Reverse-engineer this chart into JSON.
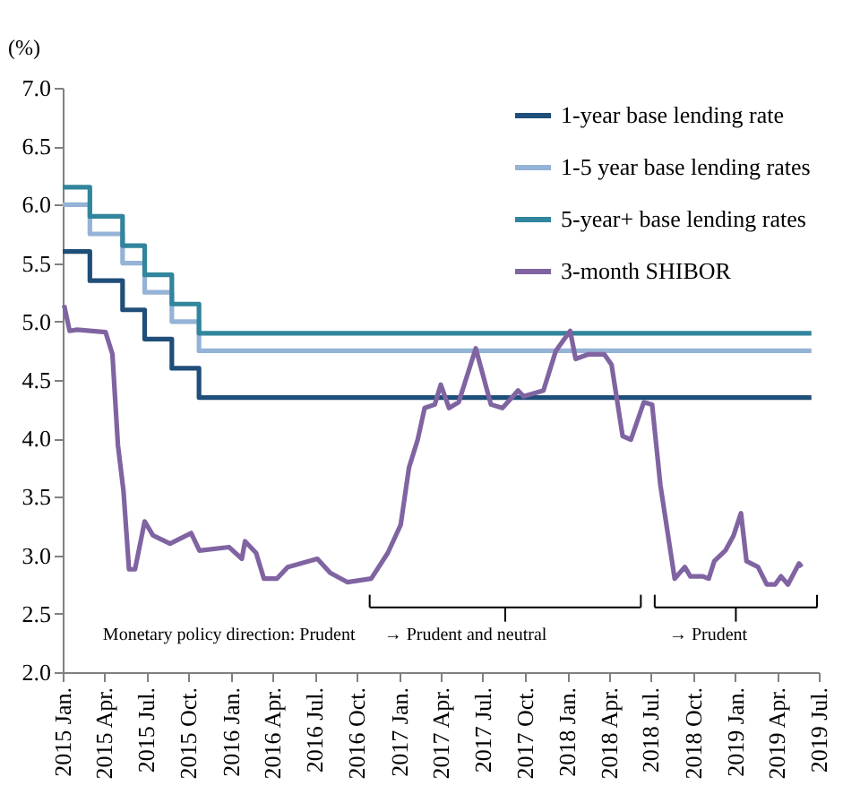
{
  "chart_data": {
    "type": "line",
    "ylabel": "(%)",
    "xlim": [
      "2015-01-01",
      "2019-07-01"
    ],
    "xticks": [
      {
        "value": "2015-01-01",
        "label": "2015 Jan."
      },
      {
        "value": "2015-04-01",
        "label": "2015 Apr."
      },
      {
        "value": "2015-07-01",
        "label": "2015 Jul."
      },
      {
        "value": "2015-10-01",
        "label": "2015 Oct."
      },
      {
        "value": "2016-01-01",
        "label": "2016 Jan."
      },
      {
        "value": "2016-04-01",
        "label": "2016 Apr."
      },
      {
        "value": "2016-07-01",
        "label": "2016 Jul."
      },
      {
        "value": "2016-10-01",
        "label": "2016 Oct."
      },
      {
        "value": "2017-01-01",
        "label": "2017 Jan."
      },
      {
        "value": "2017-04-01",
        "label": "2017 Apr."
      },
      {
        "value": "2017-07-01",
        "label": "2017 Jul."
      },
      {
        "value": "2017-10-01",
        "label": "2017 Oct."
      },
      {
        "value": "2018-01-01",
        "label": "2018 Jan."
      },
      {
        "value": "2018-04-01",
        "label": "2018 Apr."
      },
      {
        "value": "2018-07-01",
        "label": "2018 Jul."
      },
      {
        "value": "2018-10-01",
        "label": "2018 Oct."
      },
      {
        "value": "2019-01-01",
        "label": "2019 Jan."
      },
      {
        "value": "2019-04-01",
        "label": "2019 Apr."
      },
      {
        "value": "2019-07-01",
        "label": "2019 Jul."
      }
    ],
    "ylim": [
      2.0,
      7.0
    ],
    "yticks": [
      {
        "value": 2,
        "label": "2.0"
      },
      {
        "value": 2.5,
        "label": "2.5"
      },
      {
        "value": 3,
        "label": "3.0"
      },
      {
        "value": 3.5,
        "label": "3.5"
      },
      {
        "value": 4,
        "label": "4.0"
      },
      {
        "value": 4.5,
        "label": "4.5"
      },
      {
        "value": 5,
        "label": "5.0"
      },
      {
        "value": 5.5,
        "label": "5.5"
      },
      {
        "value": 6,
        "label": "6.0"
      },
      {
        "value": 6.5,
        "label": "6.5"
      },
      {
        "value": 7,
        "label": "7.0"
      }
    ],
    "grid": false,
    "legend": "top right",
    "marker": "none",
    "line_style": "solid",
    "series": [
      {
        "name": "1-year base lending rate",
        "type": "step",
        "color": "#1f4e79",
        "x": [
          "2015-01-01",
          "2015-03-01",
          "2015-05-11",
          "2015-06-28",
          "2015-08-26",
          "2015-10-24",
          "2019-06-15"
        ],
        "values": [
          5.6,
          5.35,
          5.1,
          4.85,
          4.6,
          4.35,
          4.35
        ]
      },
      {
        "name": "1-5 year base lending rates",
        "type": "step",
        "color": "#95b3d7",
        "x": [
          "2015-01-01",
          "2015-03-01",
          "2015-05-11",
          "2015-06-28",
          "2015-08-26",
          "2015-10-24",
          "2019-06-15"
        ],
        "values": [
          6.0,
          5.75,
          5.5,
          5.25,
          5.0,
          4.75,
          4.75
        ]
      },
      {
        "name": "5-year+ base lending rates",
        "type": "step",
        "color": "#31859c",
        "x": [
          "2015-01-01",
          "2015-03-01",
          "2015-05-11",
          "2015-06-28",
          "2015-08-26",
          "2015-10-24",
          "2019-06-15"
        ],
        "values": [
          6.15,
          5.9,
          5.65,
          5.4,
          5.15,
          4.9,
          4.9
        ]
      },
      {
        "name": "3-month SHIBOR",
        "type": "line",
        "color": "#8064a2",
        "x": [
          "2015-01-04",
          "2015-01-16",
          "2015-02-01",
          "2015-04-04",
          "2015-04-19",
          "2015-05-01",
          "2015-05-13",
          "2015-05-25",
          "2015-06-07",
          "2015-06-28",
          "2015-07-16",
          "2015-08-22",
          "2015-10-07",
          "2015-10-25",
          "2015-12-28",
          "2016-01-25",
          "2016-02-01",
          "2016-02-25",
          "2016-03-13",
          "2016-04-10",
          "2016-05-04",
          "2016-07-07",
          "2016-08-04",
          "2016-09-10",
          "2016-11-01",
          "2016-12-07",
          "2017-01-04",
          "2017-01-22",
          "2017-02-10",
          "2017-02-25",
          "2017-03-19",
          "2017-04-01",
          "2017-04-19",
          "2017-05-10",
          "2017-06-16",
          "2017-07-19",
          "2017-08-13",
          "2017-09-16",
          "2017-09-28",
          "2017-11-10",
          "2017-12-07",
          "2018-01-07",
          "2018-01-19",
          "2018-02-16",
          "2018-03-22",
          "2018-04-07",
          "2018-05-01",
          "2018-05-19",
          "2018-06-16",
          "2018-07-04",
          "2018-07-22",
          "2018-08-22",
          "2018-09-13",
          "2018-09-25",
          "2018-10-22",
          "2018-11-04",
          "2018-11-16",
          "2018-12-10",
          "2018-12-28",
          "2019-01-13",
          "2019-01-25",
          "2019-02-19",
          "2019-03-10",
          "2019-03-28",
          "2019-04-10",
          "2019-04-25",
          "2019-05-19",
          "2019-05-25"
        ],
        "values": [
          5.14,
          4.92,
          4.93,
          4.91,
          4.72,
          3.94,
          3.55,
          2.88,
          2.88,
          3.29,
          3.17,
          3.1,
          3.19,
          3.04,
          3.07,
          2.97,
          3.12,
          3.02,
          2.8,
          2.8,
          2.9,
          2.97,
          2.85,
          2.77,
          2.8,
          3.02,
          3.26,
          3.75,
          3.99,
          4.26,
          4.29,
          4.46,
          4.26,
          4.31,
          4.77,
          4.29,
          4.26,
          4.41,
          4.36,
          4.41,
          4.75,
          4.92,
          4.68,
          4.72,
          4.72,
          4.63,
          4.02,
          3.99,
          4.31,
          4.29,
          3.6,
          2.8,
          2.9,
          2.82,
          2.82,
          2.8,
          2.95,
          3.04,
          3.17,
          3.36,
          2.95,
          2.9,
          2.75,
          2.75,
          2.82,
          2.75,
          2.93,
          2.9
        ]
      }
    ],
    "annotations": [
      "Monetary policy direction:  Prudent",
      "→  Prudent and neutral",
      "→  Prudent"
    ]
  }
}
